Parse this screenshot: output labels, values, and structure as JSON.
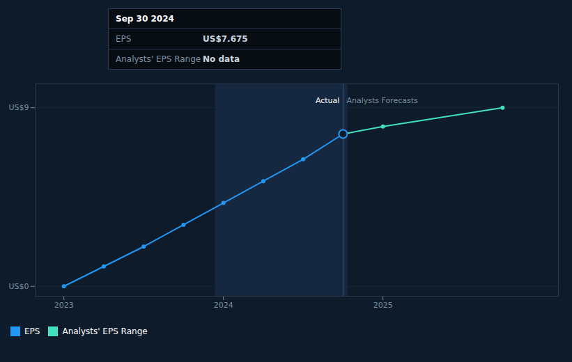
{
  "chart_data": {
    "type": "line",
    "series": [
      {
        "name": "EPS",
        "color": "#2196f3",
        "x": [
          2023.0,
          2023.25,
          2023.5,
          2023.75,
          2024.0,
          2024.25,
          2024.5,
          2024.75
        ],
        "values": [
          0.0,
          1.0,
          2.0,
          3.1,
          4.2,
          5.3,
          6.4,
          7.675
        ]
      },
      {
        "name": "Analysts' EPS Range",
        "color": "#40e0c0",
        "x": [
          2024.75,
          2025.0,
          2025.75
        ],
        "values": [
          7.675,
          8.05,
          9.0
        ]
      }
    ],
    "marker": "circle",
    "xlim": [
      2022.82,
      2026.1
    ],
    "ylim": [
      -0.5,
      10.2
    ],
    "xticks": [
      2023,
      2024,
      2025
    ],
    "yticks": [
      {
        "value": 0,
        "label": "US$0"
      },
      {
        "value": 9,
        "label": "US$9"
      }
    ],
    "grid": true,
    "legend": "bottom",
    "highlight": {
      "x": [
        2023.95,
        2024.78
      ],
      "color": "#162840"
    },
    "divider": {
      "x": 2024.75,
      "left_label": "Actual",
      "right_label": "Analysts Forecasts"
    },
    "tooltip": {
      "x": 2024.75,
      "y": 7.675,
      "title": "Sep 30 2024",
      "rows": [
        {
          "label": "EPS",
          "value": "US$7.675"
        },
        {
          "label": "Analysts' EPS Range",
          "value": "No data"
        }
      ]
    }
  }
}
